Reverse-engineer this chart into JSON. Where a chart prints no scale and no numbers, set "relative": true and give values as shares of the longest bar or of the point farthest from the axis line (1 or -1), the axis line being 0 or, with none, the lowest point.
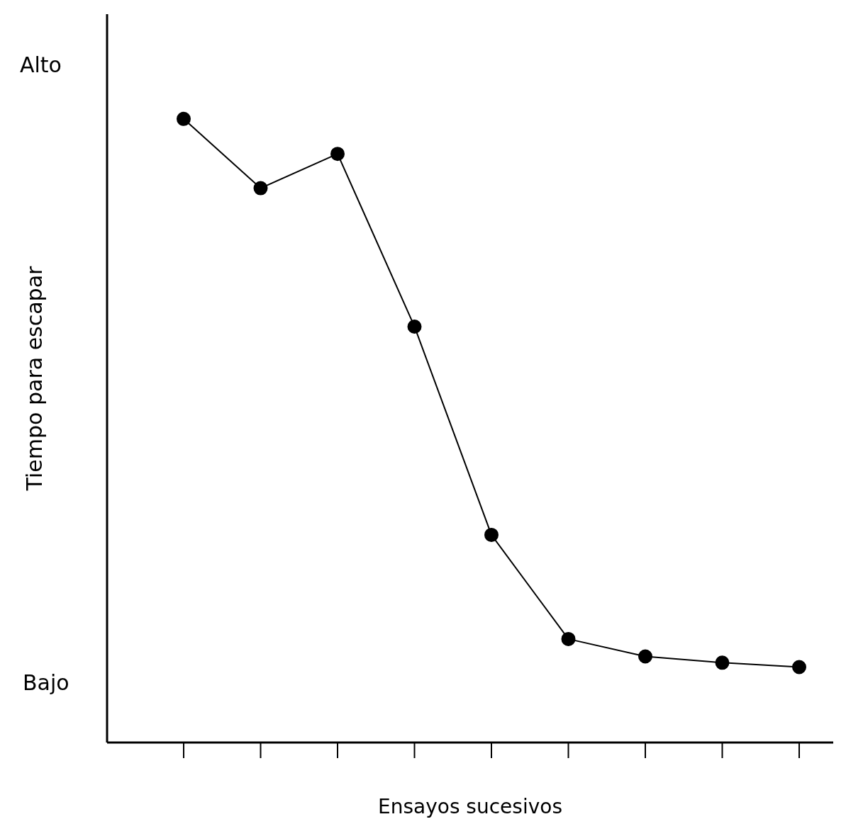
{
  "chart_data": {
    "type": "line",
    "relative": true,
    "xlabel": "Ensayos sucesivos",
    "ylabel": "Tiempo para escapar",
    "annotations": [
      "Alto",
      "Bajo"
    ],
    "categories": [
      null,
      null,
      null,
      null,
      null,
      null,
      null,
      null,
      null
    ],
    "series": [
      {
        "color": "#000000",
        "values": [
          1,
          0.889,
          0.944,
          0.667,
          0.333,
          0.166,
          0.138,
          0.128,
          0.121
        ]
      }
    ],
    "marker": "circle",
    "line_style": "solid",
    "grid": false
  }
}
